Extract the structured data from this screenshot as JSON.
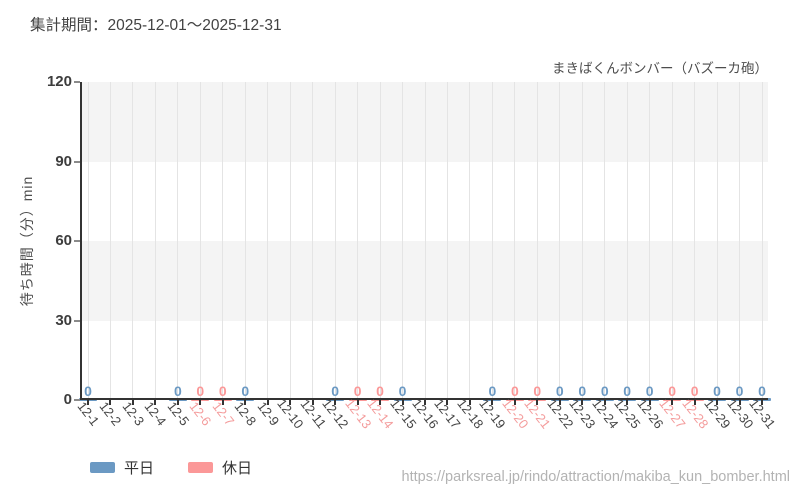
{
  "header": {
    "period_label": "集計期間：2025-12-01～2025-12-31"
  },
  "chart": {
    "title": "まきばくんボンバー（バズーカ砲）",
    "y_axis_title": "待ち時間（分）min"
  },
  "legend": {
    "items": [
      {
        "label": "平日",
        "color": "#6b99c3"
      },
      {
        "label": "休日",
        "color": "#fb9898"
      }
    ]
  },
  "footer": {
    "source_url": "https://parksreal.jp/rindo/attraction/makiba_kun_bomber.html"
  },
  "colors": {
    "weekday_series": "#6b99c3",
    "holiday_series": "#fb9898",
    "weekday_tick_label": "#454545",
    "holiday_tick_label": "#f49c9c",
    "axis": "#333333",
    "gridline": "#e4e4e4",
    "band": "#f4f4f4"
  },
  "chart_data": {
    "type": "scatter",
    "title": "まきばくんボンバー（バズーカ砲）",
    "xlabel": "",
    "ylabel": "待ち時間（分）min",
    "ylim": [
      0,
      120
    ],
    "yticks": [
      0,
      30,
      60,
      90,
      120
    ],
    "categories": [
      "12-1",
      "12-2",
      "12-3",
      "12-4",
      "12-5",
      "12-6",
      "12-7",
      "12-8",
      "12-9",
      "12-10",
      "12-11",
      "12-12",
      "12-13",
      "12-14",
      "12-15",
      "12-16",
      "12-17",
      "12-18",
      "12-19",
      "12-20",
      "12-21",
      "12-22",
      "12-23",
      "12-24",
      "12-25",
      "12-26",
      "12-27",
      "12-28",
      "12-29",
      "12-30",
      "12-31"
    ],
    "weekend_categories": [
      "12-6",
      "12-7",
      "12-13",
      "12-14",
      "12-20",
      "12-21",
      "12-27",
      "12-28"
    ],
    "series": [
      {
        "name": "平日",
        "color": "#6b99c3",
        "values": [
          0,
          null,
          null,
          null,
          0,
          null,
          null,
          0,
          null,
          null,
          null,
          0,
          null,
          null,
          0,
          null,
          null,
          null,
          0,
          null,
          null,
          0,
          0,
          0,
          0,
          0,
          null,
          null,
          0,
          0,
          0
        ]
      },
      {
        "name": "休日",
        "color": "#fb9898",
        "values": [
          null,
          null,
          null,
          null,
          null,
          0,
          0,
          null,
          null,
          null,
          null,
          null,
          0,
          0,
          null,
          null,
          null,
          null,
          null,
          0,
          0,
          null,
          null,
          null,
          null,
          null,
          0,
          0,
          null,
          null,
          null
        ]
      }
    ],
    "value_labels_shown": true,
    "legend_position": "bottom-left",
    "grid": "vertical-lines-and-horizontal-bands"
  }
}
